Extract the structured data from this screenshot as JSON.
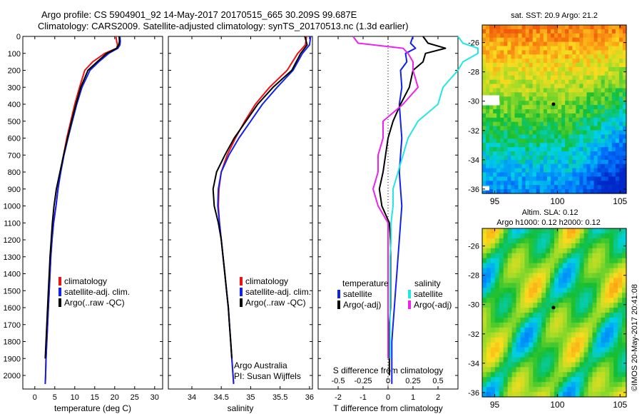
{
  "header": {
    "line1": "Argo profile: CS 5904901_92 14-May-2017 20170515_665 30.209S 99.687E",
    "line2": "Climatology: CARS2009. Satellite-adjusted climatology: synTS_20170513.nc (1.3d earlier)"
  },
  "colors": {
    "climatology": "#ee1111",
    "satellite": "#1122ee",
    "argo": "#000000",
    "sal_sat": "#22e6e6",
    "sal_argo": "#ee22ee"
  },
  "chart_data": [
    {
      "type": "line",
      "xlabel": "temperature (deg C)",
      "xlim": [
        -3,
        32
      ],
      "ylim": [
        0,
        2080
      ],
      "xticks": [
        0,
        5,
        10,
        15,
        20,
        25,
        30
      ],
      "yticks": [
        0,
        100,
        200,
        300,
        400,
        500,
        600,
        700,
        800,
        900,
        1000,
        1100,
        1200,
        1300,
        1400,
        1500,
        1600,
        1700,
        1800,
        1900,
        2000
      ],
      "legend": [
        "climatology",
        "satellite-adj. clim.",
        "Argo(..raw -QC)"
      ],
      "series": [
        {
          "name": "climatology",
          "color": "#ee1111",
          "x": [
            20.3,
            20.5,
            20.7,
            20.5,
            17.5,
            14.5,
            12.5,
            11.2,
            10.0,
            9.0,
            8.0,
            7.2,
            6.4,
            5.8,
            5.3,
            4.7,
            4.3,
            4.0,
            3.8,
            3.6,
            3.4,
            3.2,
            3.0,
            2.8,
            2.7,
            2.6
          ],
          "y": [
            0,
            30,
            50,
            70,
            100,
            150,
            200,
            300,
            400,
            500,
            600,
            700,
            800,
            900,
            1000,
            1100,
            1200,
            1300,
            1400,
            1500,
            1600,
            1700,
            1800,
            1900,
            2000,
            2050
          ]
        },
        {
          "name": "satellite-adj. clim.",
          "color": "#1122ee",
          "x": [
            21.3,
            21.4,
            21.3,
            20.8,
            18.5,
            16.0,
            13.8,
            11.8,
            10.5,
            9.4,
            8.3,
            7.3,
            6.5,
            5.8,
            5.3,
            4.7,
            4.3,
            4.0,
            3.8,
            3.6,
            3.4,
            3.2,
            3.0,
            2.8,
            2.7,
            2.6
          ],
          "y": [
            0,
            30,
            50,
            70,
            100,
            150,
            200,
            300,
            400,
            500,
            600,
            700,
            800,
            900,
            1000,
            1100,
            1200,
            1300,
            1400,
            1500,
            1600,
            1700,
            1800,
            1900,
            2000,
            2050
          ]
        },
        {
          "name": "Argo(..raw -QC)",
          "color": "#000000",
          "x": [
            21.1,
            21.2,
            21.0,
            20.5,
            18.0,
            15.6,
            13.3,
            11.5,
            10.3,
            9.2,
            8.2,
            7.2,
            6.3,
            5.4,
            4.8,
            4.4,
            4.1,
            3.8,
            3.6,
            3.4,
            3.2,
            3.0,
            2.8,
            2.6
          ],
          "y": [
            0,
            30,
            50,
            70,
            100,
            150,
            200,
            300,
            400,
            500,
            600,
            700,
            800,
            900,
            1000,
            1100,
            1200,
            1300,
            1400,
            1500,
            1600,
            1700,
            1800,
            1900
          ]
        }
      ]
    },
    {
      "type": "line",
      "xlabel": "salinity",
      "xlim": [
        33.6,
        36.05
      ],
      "ylim": [
        0,
        2080
      ],
      "xticks": [
        34,
        34.5,
        35,
        35.5,
        36
      ],
      "xticklabels": [
        "34",
        "34.5",
        "35",
        "35.5",
        "36"
      ],
      "legend": [
        "climatology",
        "satellite-adj. clim.",
        "Argo(..raw -QC)"
      ],
      "annotation": [
        "Argo Australia",
        "PI: Susan Wijffels"
      ],
      "series": [
        {
          "name": "climatology",
          "color": "#ee1111",
          "x": [
            35.95,
            35.93,
            35.8,
            35.62,
            35.32,
            35.08,
            34.9,
            34.74,
            34.6,
            34.5,
            34.46,
            34.45,
            34.47,
            34.5,
            34.53,
            34.56,
            34.59,
            34.62,
            34.64,
            34.66,
            34.68,
            34.7,
            34.71
          ],
          "y": [
            0,
            50,
            100,
            200,
            300,
            400,
            500,
            600,
            700,
            800,
            900,
            1000,
            1100,
            1200,
            1300,
            1400,
            1500,
            1600,
            1700,
            1800,
            1900,
            2000,
            2050
          ]
        },
        {
          "name": "satellite-adj. clim.",
          "color": "#1122ee",
          "x": [
            36.02,
            36.0,
            35.88,
            35.72,
            35.45,
            35.2,
            35.0,
            34.8,
            34.63,
            34.5,
            34.45,
            34.44,
            34.47,
            34.5,
            34.53,
            34.56,
            34.59,
            34.62,
            34.64,
            34.66,
            34.68,
            34.7,
            34.71
          ],
          "y": [
            0,
            50,
            100,
            200,
            300,
            400,
            500,
            600,
            700,
            800,
            900,
            1000,
            1100,
            1200,
            1300,
            1400,
            1500,
            1600,
            1700,
            1800,
            1900,
            2000,
            2050
          ]
        },
        {
          "name": "Argo(..raw -QC)",
          "color": "#000000",
          "x": [
            35.92,
            35.96,
            35.85,
            35.7,
            35.38,
            35.12,
            34.92,
            34.72,
            34.56,
            34.42,
            34.36,
            34.38,
            34.45,
            34.5,
            34.53,
            34.56,
            34.59,
            34.62,
            34.64,
            34.66,
            34.68
          ],
          "y": [
            0,
            50,
            100,
            200,
            300,
            400,
            500,
            600,
            700,
            800,
            900,
            1000,
            1100,
            1200,
            1300,
            1400,
            1500,
            1600,
            1700,
            1800,
            1900
          ]
        }
      ]
    },
    {
      "type": "line",
      "xlabel": "T difference from climatology",
      "x2label": "S difference from climatology",
      "xlim": [
        -2.8,
        2.8
      ],
      "ylim": [
        0,
        2080
      ],
      "xticks": [
        -2,
        -1,
        0,
        1,
        2
      ],
      "x2ticks": [
        -0.5,
        -0.25,
        0,
        0.25,
        0.5
      ],
      "x2ticklabels": [
        "-0.5",
        "-0.25",
        "0",
        "0.25",
        "0.5"
      ],
      "legend_title_left": "temperature",
      "legend_title_right": "salinity",
      "legend": [
        "satellite",
        "Argo(-adj)",
        "satellite",
        "Argo(-adj)"
      ],
      "series": [
        {
          "name": "satellite",
          "color": "#1122ee",
          "x": [
            1.0,
            0.9,
            1.1,
            0.7,
            0.75,
            0.5,
            0.55,
            0.45,
            0.5,
            0.55,
            0.5,
            0.45,
            0.5,
            0.55,
            0.5,
            0.45,
            0.4,
            0.35,
            0.3,
            0.25,
            0.2,
            0.15,
            0.15,
            0.15,
            0.15
          ],
          "y": [
            0,
            40,
            70,
            100,
            150,
            200,
            300,
            400,
            500,
            600,
            700,
            800,
            900,
            1000,
            1100,
            1200,
            1300,
            1400,
            1500,
            1600,
            1700,
            1800,
            1900,
            2000,
            2050
          ]
        },
        {
          "name": "Argo(-adj)",
          "color": "#000000",
          "x": [
            1.4,
            1.6,
            2.3,
            1.5,
            1.4,
            1.0,
            0.85,
            0.5,
            0.2,
            0.0,
            -0.1,
            -0.2,
            -0.35,
            -0.25,
            0.05,
            0.1,
            0.1,
            0.1,
            0.1,
            0.1,
            0.05,
            0.05,
            0.05,
            0.05
          ],
          "y": [
            0,
            40,
            70,
            100,
            150,
            200,
            300,
            400,
            500,
            600,
            700,
            800,
            900,
            1000,
            1100,
            1200,
            1300,
            1400,
            1500,
            1600,
            1700,
            1800,
            1900,
            2000
          ]
        },
        {
          "name": "satellite",
          "color": "#22e6e6",
          "x": [
            0.7,
            0.75,
            0.9,
            0.9,
            0.75,
            0.7,
            0.55,
            0.5,
            0.3,
            0.2,
            0.15,
            0.1,
            0.05,
            0.05,
            0.03,
            0.03,
            0.02,
            0.02,
            0.02,
            0.02,
            0.02,
            0.02,
            0.02
          ],
          "y": [
            0,
            40,
            70,
            100,
            150,
            200,
            300,
            400,
            500,
            600,
            700,
            800,
            900,
            1000,
            1100,
            1200,
            1300,
            1400,
            1500,
            1600,
            1700,
            1800,
            1900
          ]
        },
        {
          "name": "Argo(-adj)",
          "color": "#ee22ee",
          "x": [
            -0.35,
            -0.3,
            0.15,
            0.2,
            0.25,
            0.25,
            0.3,
            0.15,
            -0.05,
            -0.05,
            -0.1,
            -0.1,
            -0.15,
            -0.1,
            0.0,
            0.0,
            0.0,
            0.0,
            0.0,
            0.0,
            0.0,
            0.0,
            0.0
          ],
          "y": [
            0,
            40,
            70,
            100,
            150,
            200,
            300,
            400,
            500,
            600,
            700,
            800,
            900,
            1000,
            1100,
            1200,
            1300,
            1400,
            1500,
            1600,
            1700,
            1800,
            1900
          ]
        }
      ]
    },
    {
      "type": "heatmap",
      "title": "sat. SST: 20.9  Argo: 21.2",
      "xlim": [
        94,
        105.5
      ],
      "ylim": [
        -36.3,
        -24.8
      ],
      "xticks": [
        95,
        100,
        105
      ],
      "yticks": [
        -26,
        -28,
        -30,
        -32,
        -34,
        -36
      ],
      "marker": {
        "lon": 99.687,
        "lat": -30.209
      }
    },
    {
      "type": "heatmap",
      "title": "Altim. SLA: 0.12",
      "subtitle": "Argo h1000: 0.12  h2000: 0.12",
      "xlim": [
        94,
        105.5
      ],
      "ylim": [
        -36.3,
        -24.8
      ],
      "xticks": [
        95,
        100,
        105
      ],
      "yticks": [
        -26,
        -28,
        -30,
        -32,
        -34,
        -36
      ],
      "marker": {
        "lon": 99.687,
        "lat": -30.209
      }
    }
  ],
  "footer": {
    "credit": "©IMOS 20-May-2017 20:41:08"
  }
}
